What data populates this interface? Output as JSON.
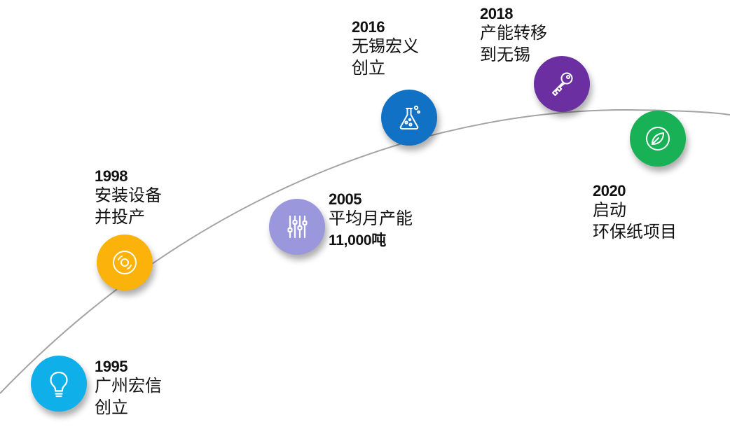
{
  "milestones": [
    {
      "year": "1995",
      "lines": [
        "广州宏信",
        "创立"
      ],
      "color": "#0fb0ea",
      "icon": "lightbulb-icon"
    },
    {
      "year": "1998",
      "lines": [
        "安装设备",
        "并投产"
      ],
      "color": "#fbb20a",
      "icon": "record-disc-icon"
    },
    {
      "year": "2005",
      "lines": [
        "平均月产能",
        "11,000吨"
      ],
      "color": "#9a97dc",
      "icon": "sliders-icon"
    },
    {
      "year": "2016",
      "lines": [
        "无锡宏义",
        "创立"
      ],
      "color": "#1171c4",
      "icon": "flask-icon"
    },
    {
      "year": "2018",
      "lines": [
        "产能转移",
        "到无锡"
      ],
      "color": "#6c2fa2",
      "icon": "key-icon"
    },
    {
      "year": "2020",
      "lines": [
        "启动",
        "环保纸项目"
      ],
      "color": "#18b155",
      "icon": "leaf-icon"
    }
  ]
}
